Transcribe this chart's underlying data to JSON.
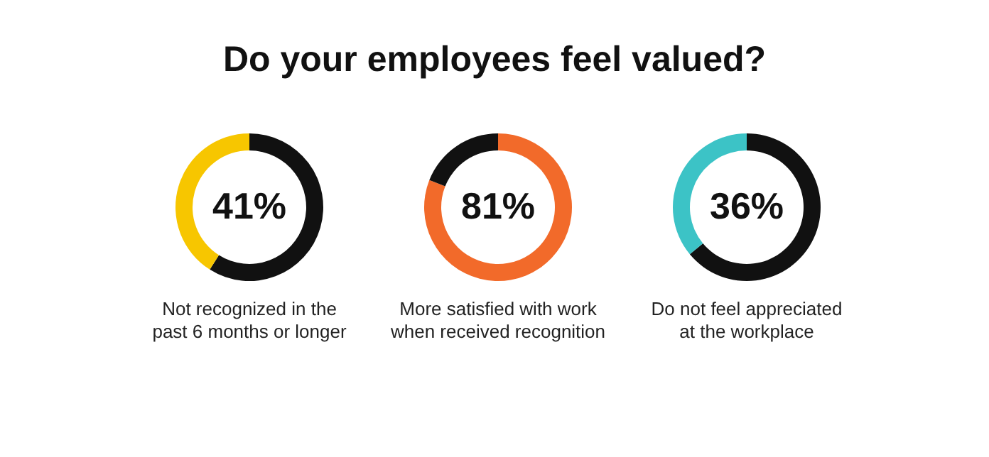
{
  "chart_data": [
    {
      "type": "donut",
      "title": "Do your employees feel valued?",
      "categories": [
        null,
        null
      ],
      "values": [
        59,
        41
      ],
      "colors": [
        "#111111",
        "#f7c600"
      ],
      "value_labels": [
        null,
        "41%"
      ],
      "annotations": [
        "Not recognized in the\npast 6 months or longer"
      ]
    },
    {
      "type": "donut",
      "categories": [
        null,
        null
      ],
      "values": [
        81,
        19
      ],
      "colors": [
        "#f26a2a",
        "#111111"
      ],
      "value_labels": [
        "81%",
        null
      ],
      "annotations": [
        "More satisfied with work\nwhen received recognition"
      ]
    },
    {
      "type": "donut",
      "categories": [
        null,
        null
      ],
      "values": [
        64,
        36
      ],
      "colors": [
        "#111111",
        "#3cc3c6"
      ],
      "value_labels": [
        null,
        "36%"
      ],
      "annotations": [
        "Do not feel appreciated\nat the workplace"
      ]
    }
  ]
}
